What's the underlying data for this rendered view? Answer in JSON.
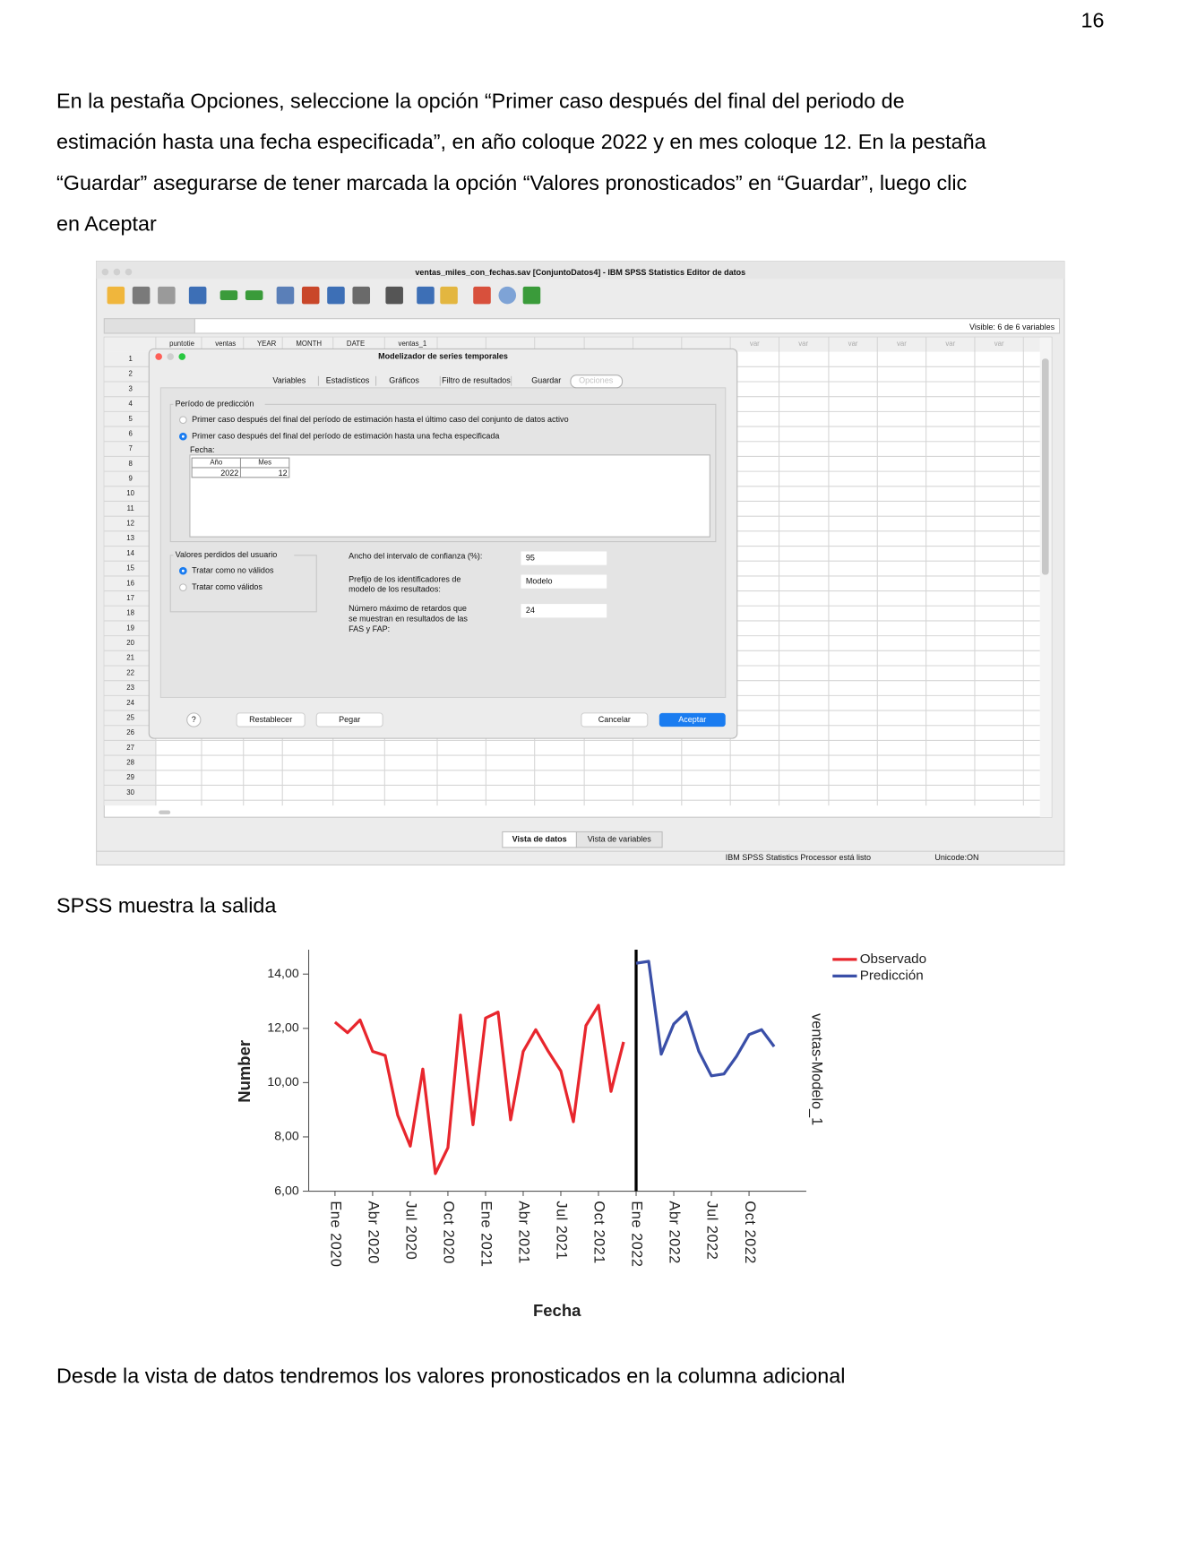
{
  "page_number": "16",
  "paragraphs": [
    [
      "En la pestaña Opciones, seleccione la opción “Primer caso después del final del periodo de",
      "estimación hasta una fecha especificada”, en año coloque 2022 y en mes coloque 12. En la pestaña",
      "“Guardar” asegurarse de tener marcada la opción “Valores pronosticados” en “Guardar”, luego clic",
      "en Aceptar"
    ],
    [
      "SPSS muestra la salida"
    ],
    [
      "Desde la vista de datos tendremos los valores pronosticados en la columna adicional"
    ]
  ],
  "screenshot": {
    "window_title": "ventas_miles_con_fechas.sav [ConjuntoDatos4] - IBM SPSS Statistics Editor de datos",
    "visible": "Visible: 6 de 6 variables",
    "columns": [
      "puntotie",
      "ventas",
      "YEAR",
      "MONTH",
      "DATE",
      "ventas_1"
    ],
    "var_columns": [
      "var",
      "var",
      "var",
      "var",
      "var",
      "var"
    ],
    "rows": [
      1,
      2,
      3,
      4,
      5,
      6,
      7,
      8,
      9,
      10,
      11,
      12,
      13,
      14,
      15,
      16,
      17,
      18,
      19,
      20,
      21,
      22,
      23,
      24,
      25,
      26,
      27,
      28,
      29,
      30
    ],
    "dialog": {
      "title": "Modelizador de series temporales",
      "tabs": [
        "Variables",
        "Estadísticos",
        "Gráficos",
        "Filtro de resultados",
        "Guardar",
        "Opciones"
      ],
      "prediction_group": "Período de predicción",
      "prediction_options": [
        "Primer caso después del final del período de estimación hasta el último caso del conjunto de datos activo",
        "Primer caso después del final del período de estimación hasta una fecha especificada"
      ],
      "date_label": "Fecha:",
      "date_headers": [
        "Año",
        "Mes"
      ],
      "date_values": [
        2022,
        12
      ],
      "missing_group": "Valores perdidos del usuario",
      "missing_options": [
        "Tratar como no válidos",
        "Tratar como válidos"
      ],
      "fields": [
        {
          "label": [
            "Ancho del intervalo de confianza (%):"
          ],
          "value": 95
        },
        {
          "label": [
            "Prefijo de los identificadores de",
            "modelo de los resultados:"
          ],
          "value": "Modelo"
        },
        {
          "label": [
            "Número máximo de retardos que",
            "se muestran en resultados de las",
            "FAS y FAP:"
          ],
          "value": 24
        }
      ],
      "buttons": [
        "?",
        "Restablecer",
        "Pegar",
        "Cancelar",
        "Aceptar"
      ]
    },
    "view_tabs": [
      "Vista de datos",
      "Vista de variables"
    ],
    "status": [
      "IBM SPSS Statistics Processor está listo",
      "Unicode:ON"
    ]
  },
  "chart_data": {
    "type": "line",
    "y_label": "Number",
    "x_label": "Fecha",
    "y2_label": "ventas-Modelo_1",
    "categories": [
      "Ene 2020",
      null,
      null,
      "Abr 2020",
      null,
      null,
      "Jul 2020",
      null,
      null,
      "Oct 2020",
      null,
      null,
      "Ene 2021",
      null,
      null,
      "Abr 2021",
      null,
      null,
      "Jul 2021",
      null,
      null,
      "Oct 2021",
      null,
      null,
      "Ene 2022",
      null,
      null,
      "Abr 2022",
      null,
      null,
      "Jul 2022",
      null,
      null,
      "Oct 2022",
      null,
      null
    ],
    "series": [
      {
        "name": "Observado",
        "color": "#e8262d",
        "values": [
          12.23,
          11.84,
          12.31,
          11.15,
          11.0,
          8.8,
          7.66,
          10.5,
          6.65,
          7.6,
          12.49,
          8.45,
          12.38,
          12.6,
          8.63,
          11.15,
          11.95,
          11.15,
          10.43,
          8.56,
          12.1,
          12.85,
          9.68,
          11.5,
          null,
          null,
          null,
          null,
          null,
          null,
          null,
          null,
          null,
          null,
          null,
          null
        ]
      },
      {
        "name": "Predicción",
        "color": "#3a4fa8",
        "values": [
          null,
          null,
          null,
          null,
          null,
          null,
          null,
          null,
          null,
          null,
          null,
          null,
          null,
          null,
          null,
          null,
          null,
          null,
          null,
          null,
          null,
          null,
          null,
          null,
          14.4,
          14.47,
          11.05,
          12.16,
          12.6,
          11.15,
          10.25,
          10.32,
          10.97,
          11.77,
          11.95,
          11.33
        ]
      }
    ],
    "reference_line_index": 24,
    "ylim": [
      6,
      14.9
    ],
    "yticks": [
      {
        "value": 6,
        "label": "6,00"
      },
      {
        "value": 8,
        "label": "8,00"
      },
      {
        "value": 10,
        "label": "10,00"
      },
      {
        "value": 12,
        "label": "12,00"
      },
      {
        "value": 14,
        "label": "14,00"
      }
    ],
    "grid": false,
    "legend": "top-right"
  }
}
